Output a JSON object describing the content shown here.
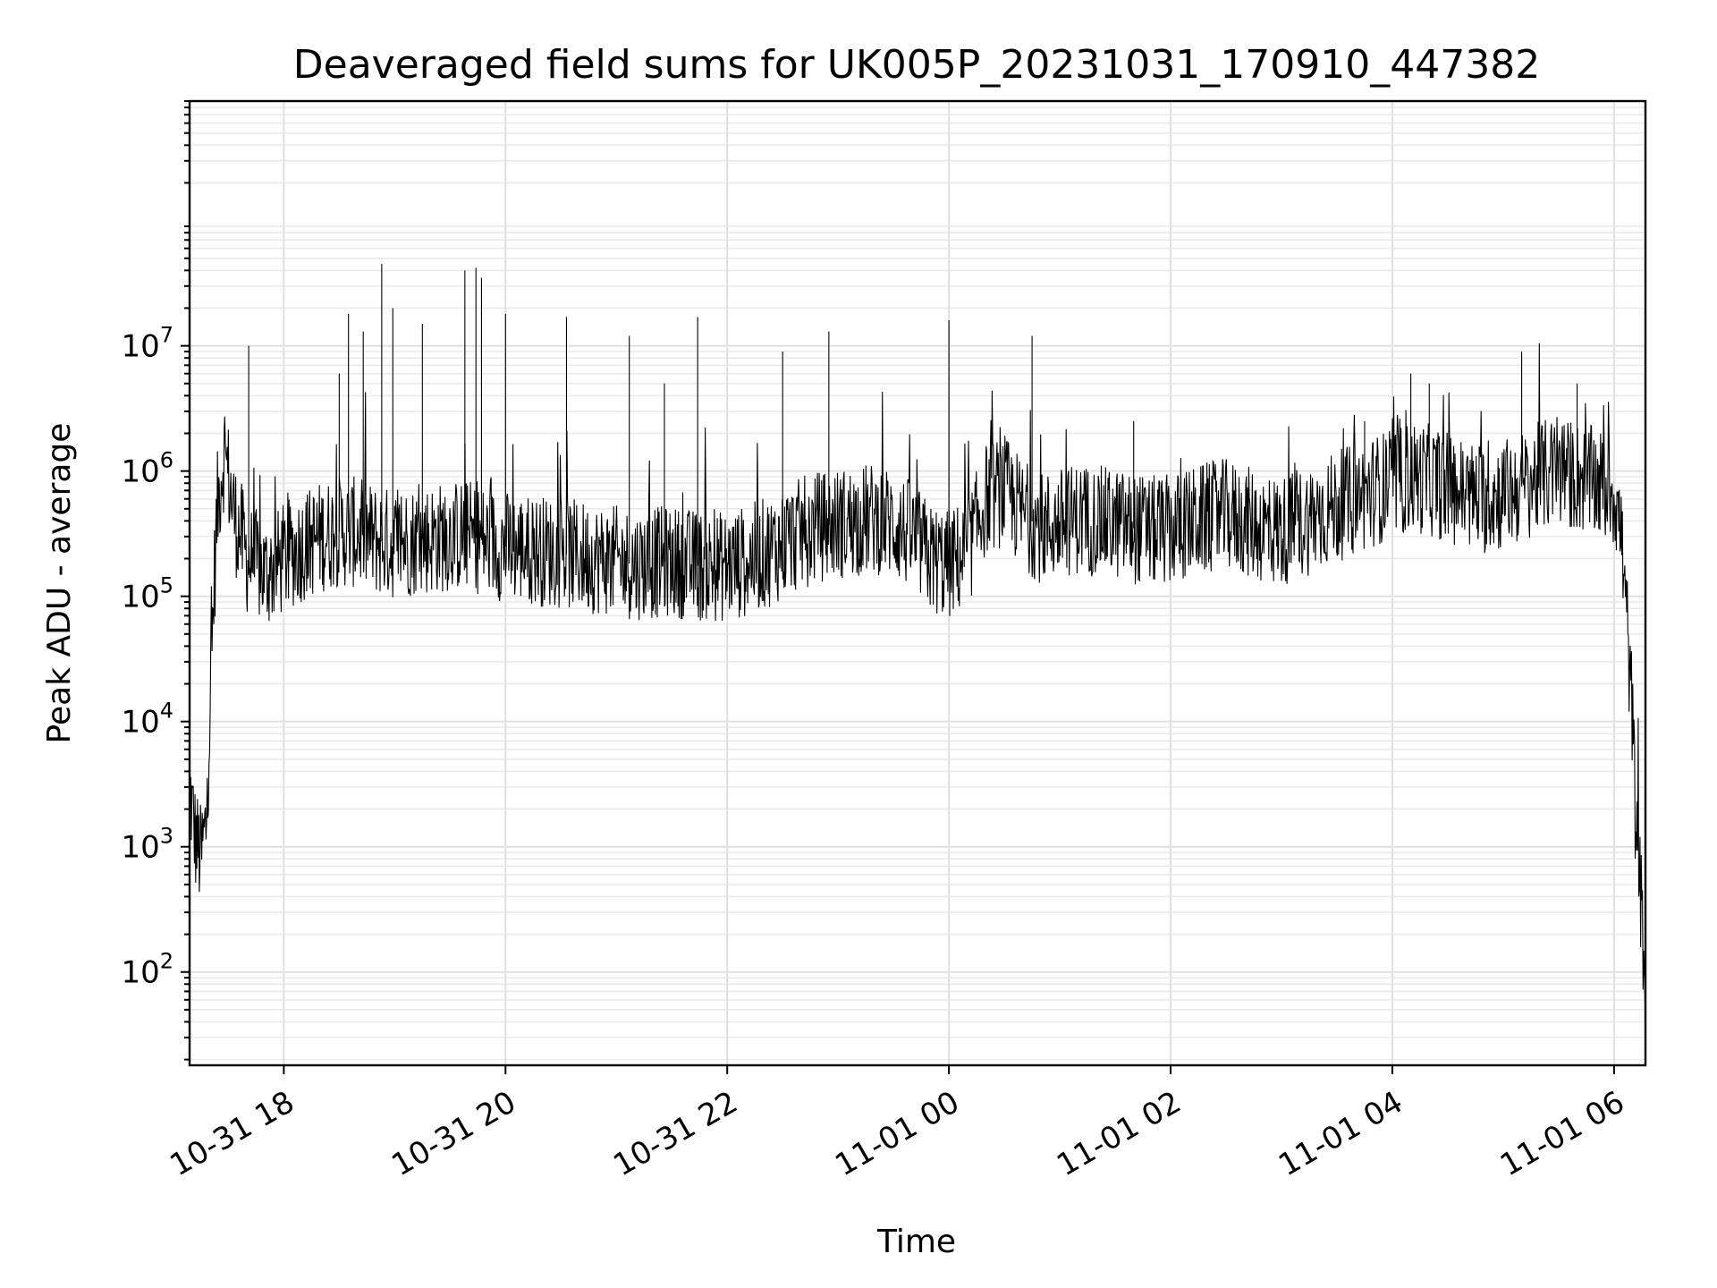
{
  "chart_data": {
    "type": "line",
    "title": "Deaveraged field sums for UK005P_20231031_170910_447382",
    "xlabel": "Time",
    "ylabel": "Peak ADU - average",
    "x_range": [
      "2023-10-31 17:09",
      "2023-11-01 06:17"
    ],
    "y_scale": "log",
    "ylim": [
      18,
      900000000
    ],
    "grid": true,
    "legend": "none",
    "line_color": "#000000",
    "x_ticks": [
      {
        "value": "2023-10-31 18:00",
        "label": "10-31 18"
      },
      {
        "value": "2023-10-31 20:00",
        "label": "10-31 20"
      },
      {
        "value": "2023-10-31 22:00",
        "label": "10-31 22"
      },
      {
        "value": "2023-11-01 00:00",
        "label": "11-01 00"
      },
      {
        "value": "2023-11-01 02:00",
        "label": "11-01 02"
      },
      {
        "value": "2023-11-01 04:00",
        "label": "11-01 04"
      },
      {
        "value": "2023-11-01 06:00",
        "label": "11-01 06"
      }
    ],
    "y_ticks": [
      {
        "value": 100,
        "base": "10",
        "exp": "2"
      },
      {
        "value": 1000,
        "base": "10",
        "exp": "3"
      },
      {
        "value": 10000,
        "base": "10",
        "exp": "4"
      },
      {
        "value": 100000,
        "base": "10",
        "exp": "5"
      },
      {
        "value": 1000000,
        "base": "10",
        "exp": "6"
      },
      {
        "value": 10000000,
        "base": "10",
        "exp": "7"
      }
    ],
    "series": [
      {
        "x": [
          "2023-10-31 17:09",
          "2023-10-31 17:12",
          "2023-10-31 17:15",
          "2023-10-31 17:18",
          "2023-10-31 17:20",
          "2023-10-31 17:22",
          "2023-10-31 17:24",
          "2023-10-31 17:26",
          "2023-10-31 17:28",
          "2023-10-31 17:31",
          "2023-10-31 17:34",
          "2023-10-31 17:37",
          "2023-10-31 17:40",
          "2023-10-31 17:45",
          "2023-10-31 17:50",
          "2023-10-31 17:55",
          "2023-10-31 18:00",
          "2023-10-31 18:10",
          "2023-10-31 18:20",
          "2023-10-31 18:30",
          "2023-10-31 18:40",
          "2023-10-31 18:50",
          "2023-10-31 19:00",
          "2023-10-31 19:10",
          "2023-10-31 19:20",
          "2023-10-31 19:30",
          "2023-10-31 19:40",
          "2023-10-31 19:50",
          "2023-10-31 20:00",
          "2023-10-31 20:10",
          "2023-10-31 20:20",
          "2023-10-31 20:30",
          "2023-10-31 20:40",
          "2023-10-31 20:50",
          "2023-10-31 21:00",
          "2023-10-31 21:10",
          "2023-10-31 21:20",
          "2023-10-31 21:30",
          "2023-10-31 21:40",
          "2023-10-31 21:50",
          "2023-10-31 22:00",
          "2023-10-31 22:10",
          "2023-10-31 22:20",
          "2023-10-31 22:30",
          "2023-10-31 22:40",
          "2023-10-31 22:50",
          "2023-10-31 23:00",
          "2023-10-31 23:10",
          "2023-10-31 23:20",
          "2023-10-31 23:30",
          "2023-10-31 23:40",
          "2023-10-31 23:50",
          "2023-11-01 00:00",
          "2023-11-01 00:10",
          "2023-11-01 00:20",
          "2023-11-01 00:30",
          "2023-11-01 00:40",
          "2023-11-01 00:50",
          "2023-11-01 01:00",
          "2023-11-01 01:10",
          "2023-11-01 01:20",
          "2023-11-01 01:30",
          "2023-11-01 01:40",
          "2023-11-01 01:50",
          "2023-11-01 02:00",
          "2023-11-01 02:10",
          "2023-11-01 02:20",
          "2023-11-01 02:30",
          "2023-11-01 02:40",
          "2023-11-01 02:50",
          "2023-11-01 03:00",
          "2023-11-01 03:10",
          "2023-11-01 03:20",
          "2023-11-01 03:30",
          "2023-11-01 03:40",
          "2023-11-01 03:50",
          "2023-11-01 04:00",
          "2023-11-01 04:10",
          "2023-11-01 04:20",
          "2023-11-01 04:30",
          "2023-11-01 04:40",
          "2023-11-01 04:50",
          "2023-11-01 05:00",
          "2023-11-01 05:10",
          "2023-11-01 05:20",
          "2023-11-01 05:30",
          "2023-11-01 05:40",
          "2023-11-01 05:50",
          "2023-11-01 06:00",
          "2023-11-01 06:04",
          "2023-11-01 06:07",
          "2023-11-01 06:10",
          "2023-11-01 06:12",
          "2023-11-01 06:14",
          "2023-11-01 06:16",
          "2023-11-01 06:17"
        ],
        "values": [
          3000,
          1200,
          800,
          1500,
          12000,
          100000,
          500000,
          900000,
          1500000,
          700000,
          400000,
          300000,
          200000,
          180000,
          150000,
          170000,
          200000,
          250000,
          300000,
          330000,
          320000,
          280000,
          260000,
          280000,
          290000,
          300000,
          310000,
          270000,
          250000,
          240000,
          230000,
          220000,
          210000,
          200000,
          190000,
          180000,
          185000,
          190000,
          180000,
          170000,
          175000,
          190000,
          220000,
          260000,
          320000,
          360000,
          380000,
          400000,
          420000,
          380000,
          300000,
          200000,
          180000,
          220000,
          600000,
          700000,
          450000,
          350000,
          380000,
          420000,
          400000,
          380000,
          350000,
          330000,
          340000,
          380000,
          420000,
          450000,
          400000,
          350000,
          330000,
          380000,
          450000,
          520000,
          600000,
          700000,
          800000,
          900000,
          850000,
          750000,
          650000,
          600000,
          650000,
          750000,
          900000,
          1000000,
          900000,
          800000,
          700000,
          300000,
          60000,
          10000,
          1200,
          500,
          150,
          40
        ],
        "spikes": [
          {
            "x": "2023-10-31 17:41",
            "y": 10000000
          },
          {
            "x": "2023-10-31 18:30",
            "y": 6000000
          },
          {
            "x": "2023-10-31 18:35",
            "y": 18000000
          },
          {
            "x": "2023-10-31 18:43",
            "y": 13000000
          },
          {
            "x": "2023-10-31 18:53",
            "y": 45000000
          },
          {
            "x": "2023-10-31 18:59",
            "y": 20000000
          },
          {
            "x": "2023-10-31 19:15",
            "y": 15000000
          },
          {
            "x": "2023-10-31 19:38",
            "y": 40000000
          },
          {
            "x": "2023-10-31 19:44",
            "y": 42000000
          },
          {
            "x": "2023-10-31 19:47",
            "y": 35000000
          },
          {
            "x": "2023-10-31 20:00",
            "y": 18000000
          },
          {
            "x": "2023-10-31 20:33",
            "y": 17000000
          },
          {
            "x": "2023-10-31 21:07",
            "y": 12000000
          },
          {
            "x": "2023-10-31 21:26",
            "y": 5000000
          },
          {
            "x": "2023-10-31 21:44",
            "y": 17000000
          },
          {
            "x": "2023-10-31 22:30",
            "y": 9000000
          },
          {
            "x": "2023-10-31 22:55",
            "y": 13000000
          },
          {
            "x": "2023-11-01 00:00",
            "y": 16000000
          },
          {
            "x": "2023-11-01 00:45",
            "y": 12000000
          },
          {
            "x": "2023-11-01 01:40",
            "y": 2500000
          },
          {
            "x": "2023-11-01 03:45",
            "y": 2500000
          },
          {
            "x": "2023-11-01 04:10",
            "y": 6000000
          },
          {
            "x": "2023-11-01 04:20",
            "y": 5000000
          },
          {
            "x": "2023-11-01 05:10",
            "y": 9000000
          },
          {
            "x": "2023-11-01 05:40",
            "y": 5000000
          }
        ]
      }
    ]
  }
}
